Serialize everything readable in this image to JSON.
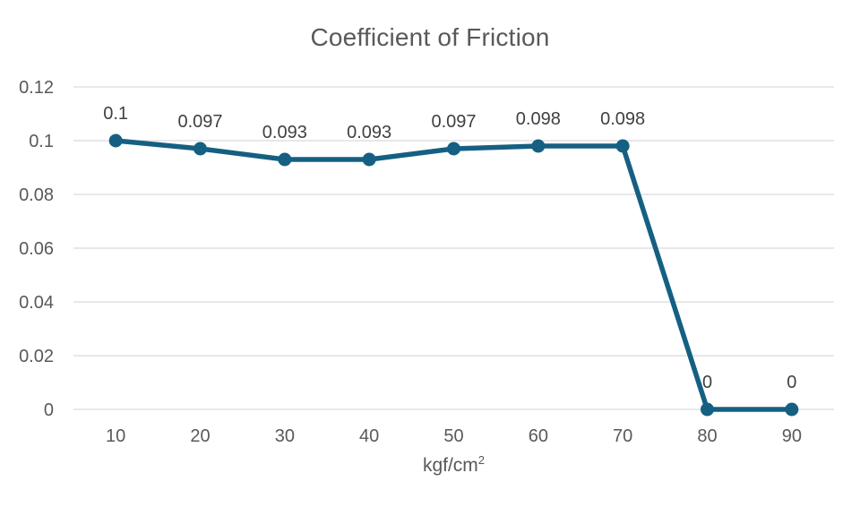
{
  "chart_data": {
    "type": "line",
    "title": "Coefficient of Friction",
    "xlabel_base": "kgf/cm",
    "xlabel_sup": "2",
    "ylabel": "",
    "categories": [
      "10",
      "20",
      "30",
      "40",
      "50",
      "60",
      "70",
      "80",
      "90"
    ],
    "series": [
      {
        "name": "Coefficient of Friction",
        "values": [
          0.1,
          0.097,
          0.093,
          0.093,
          0.097,
          0.098,
          0.098,
          0,
          0
        ],
        "data_labels": [
          "0.1",
          "0.097",
          "0.093",
          "0.093",
          "0.097",
          "0.098",
          "0.098",
          "0",
          "0"
        ]
      }
    ],
    "ylim": [
      0,
      0.12
    ],
    "yticks": [
      {
        "value": 0,
        "label": "0"
      },
      {
        "value": 0.02,
        "label": "0.02"
      },
      {
        "value": 0.04,
        "label": "0.04"
      },
      {
        "value": 0.06,
        "label": "0.06"
      },
      {
        "value": 0.08,
        "label": "0.08"
      },
      {
        "value": 0.1,
        "label": "0.1"
      },
      {
        "value": 0.12,
        "label": "0.12"
      }
    ],
    "grid": true,
    "legend": "none",
    "colors": {
      "series": "#156082",
      "gridline": "#D9D9D9",
      "axis_line": "#D9D9D9",
      "tick_label": "#595959",
      "title": "#595959",
      "data_label": "#404040",
      "background": "#FFFFFF"
    }
  }
}
